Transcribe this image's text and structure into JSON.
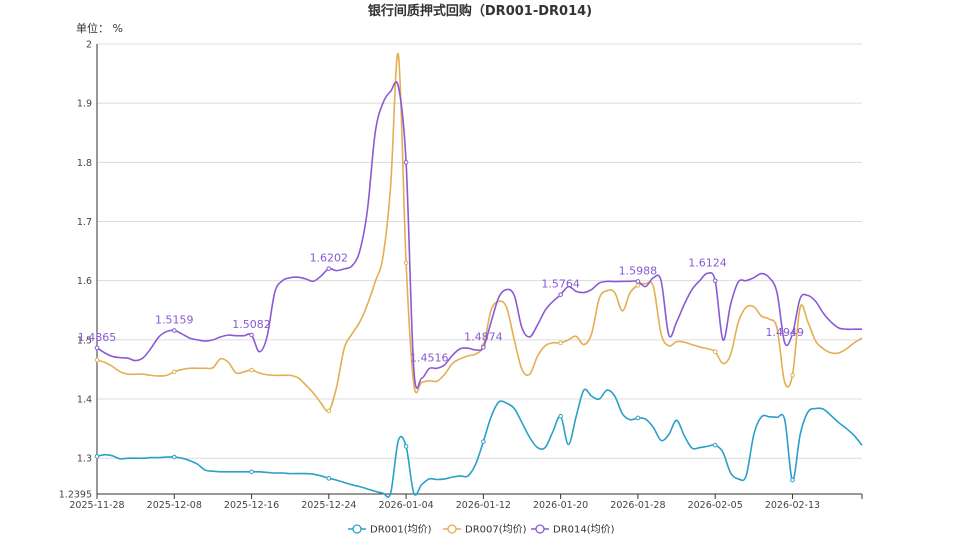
{
  "chart_data": {
    "type": "line",
    "title": "银行间质押式回购（DR001-DR014)",
    "unit_label": "单位： %",
    "xlabel": "",
    "ylabel": "",
    "ylim": [
      1.2395,
      2
    ],
    "y_ticks": [
      1.2395,
      1.3,
      1.4,
      1.5,
      1.6,
      1.7,
      1.8,
      1.9,
      2
    ],
    "y_tick_labels": [
      "1.2395",
      "1.3",
      "1.4",
      "1.5",
      "1.6",
      "1.7",
      "1.8",
      "1.9",
      "2"
    ],
    "grid": true,
    "legend_position": "bottom-center",
    "x_tick_labels": [
      "2025-11-28",
      "2025-12-08",
      "2025-12-16",
      "2025-12-24",
      "2026-01-04",
      "2026-01-12",
      "2026-01-20",
      "2026-01-28",
      "2026-02-05",
      "2026-02-13"
    ],
    "x_tick_index": [
      0,
      10,
      20,
      30,
      40,
      50,
      60,
      70,
      80,
      90
    ],
    "series": [
      {
        "name": "DR001(均价)",
        "color": "#2aa0c9",
        "values": [
          1.303,
          1.306,
          1.304,
          1.299,
          1.3,
          1.3,
          1.3,
          1.301,
          1.301,
          1.302,
          1.302,
          1.3,
          1.296,
          1.29,
          1.28,
          1.278,
          1.277,
          1.277,
          1.277,
          1.277,
          1.277,
          1.277,
          1.276,
          1.275,
          1.275,
          1.274,
          1.274,
          1.274,
          1.273,
          1.27,
          1.266,
          1.263,
          1.259,
          1.255,
          1.252,
          1.248,
          1.244,
          1.241,
          1.241,
          1.33,
          1.32,
          1.241,
          1.255,
          1.265,
          1.264,
          1.265,
          1.268,
          1.27,
          1.27,
          1.29,
          1.328,
          1.37,
          1.395,
          1.393,
          1.384,
          1.36,
          1.335,
          1.318,
          1.318,
          1.345,
          1.371,
          1.323,
          1.37,
          1.415,
          1.405,
          1.4,
          1.415,
          1.405,
          1.375,
          1.365,
          1.368,
          1.366,
          1.352,
          1.33,
          1.34,
          1.364,
          1.338,
          1.317,
          1.318,
          1.32,
          1.322,
          1.31,
          1.275,
          1.265,
          1.27,
          1.34,
          1.37,
          1.37,
          1.369,
          1.365,
          1.263,
          1.34,
          1.378,
          1.384,
          1.383,
          1.372,
          1.36,
          1.35,
          1.338,
          1.322
        ]
      },
      {
        "name": "DR007(均价)",
        "color": "#e4ae52",
        "values": [
          1.466,
          1.462,
          1.455,
          1.446,
          1.442,
          1.442,
          1.442,
          1.44,
          1.439,
          1.44,
          1.446,
          1.45,
          1.452,
          1.452,
          1.452,
          1.453,
          1.468,
          1.462,
          1.444,
          1.446,
          1.449,
          1.444,
          1.441,
          1.44,
          1.44,
          1.44,
          1.436,
          1.424,
          1.41,
          1.393,
          1.38,
          1.42,
          1.486,
          1.51,
          1.53,
          1.56,
          1.598,
          1.64,
          1.76,
          1.982,
          1.63,
          1.425,
          1.428,
          1.431,
          1.43,
          1.442,
          1.46,
          1.468,
          1.473,
          1.476,
          1.49,
          1.55,
          1.565,
          1.555,
          1.5,
          1.45,
          1.442,
          1.472,
          1.49,
          1.495,
          1.495,
          1.5,
          1.506,
          1.492,
          1.51,
          1.57,
          1.583,
          1.58,
          1.549,
          1.58,
          1.592,
          1.595,
          1.59,
          1.51,
          1.49,
          1.497,
          1.496,
          1.492,
          1.488,
          1.485,
          1.48,
          1.46,
          1.475,
          1.53,
          1.555,
          1.556,
          1.54,
          1.535,
          1.52,
          1.428,
          1.44,
          1.555,
          1.53,
          1.498,
          1.485,
          1.478,
          1.478,
          1.485,
          1.495,
          1.503
        ]
      },
      {
        "name": "DR014(均价)",
        "color": "#8a5ad6",
        "values": [
          1.4865,
          1.478,
          1.472,
          1.47,
          1.469,
          1.465,
          1.47,
          1.486,
          1.505,
          1.514,
          1.5159,
          1.51,
          1.503,
          1.5,
          1.498,
          1.5,
          1.505,
          1.508,
          1.507,
          1.507,
          1.5082,
          1.48,
          1.505,
          1.58,
          1.6,
          1.605,
          1.606,
          1.603,
          1.599,
          1.608,
          1.6202,
          1.617,
          1.62,
          1.625,
          1.65,
          1.72,
          1.85,
          1.9,
          1.92,
          1.928,
          1.8,
          1.45,
          1.435,
          1.4516,
          1.452,
          1.458,
          1.474,
          1.485,
          1.486,
          1.483,
          1.4874,
          1.53,
          1.572,
          1.585,
          1.575,
          1.52,
          1.505,
          1.525,
          1.55,
          1.565,
          1.5764,
          1.59,
          1.582,
          1.58,
          1.585,
          1.596,
          1.5988,
          1.5985,
          1.5988,
          1.599,
          1.5988,
          1.59,
          1.605,
          1.6,
          1.508,
          1.53,
          1.56,
          1.585,
          1.6,
          1.6124,
          1.6,
          1.5,
          1.56,
          1.598,
          1.6,
          1.605,
          1.612,
          1.605,
          1.58,
          1.4949,
          1.51,
          1.57,
          1.575,
          1.565,
          1.545,
          1.53,
          1.52,
          1.518,
          1.518,
          1.518
        ]
      }
    ],
    "data_labels": [
      {
        "series": 2,
        "index": 0,
        "text": "1.4865"
      },
      {
        "series": 2,
        "index": 10,
        "text": "1.5159"
      },
      {
        "series": 2,
        "index": 20,
        "text": "1.5082"
      },
      {
        "series": 2,
        "index": 30,
        "text": "1.6202"
      },
      {
        "series": 2,
        "index": 43,
        "text": "1.4516"
      },
      {
        "series": 2,
        "index": 50,
        "text": "1.4874"
      },
      {
        "series": 2,
        "index": 60,
        "text": "1.5764"
      },
      {
        "series": 2,
        "index": 70,
        "text": "1.5988"
      },
      {
        "series": 2,
        "index": 79,
        "text": "1.6124"
      },
      {
        "series": 2,
        "index": 89,
        "text": "1.4949"
      }
    ]
  }
}
